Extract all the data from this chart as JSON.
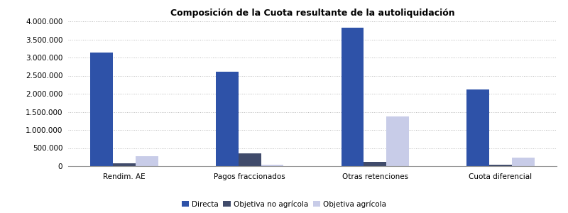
{
  "title": "Composición de la Cuota resultante de la autoliquidación",
  "categories": [
    "Rendim. AE",
    "Pagos fraccionados",
    "Otras retenciones",
    "Cuota diferencial"
  ],
  "series": [
    {
      "name": "Directa",
      "color": "#2E52A8",
      "values": [
        3130000,
        2600000,
        3820000,
        2110000
      ]
    },
    {
      "name": "Objetiva no agrícola",
      "color": "#404B6B",
      "values": [
        70000,
        350000,
        120000,
        30000
      ]
    },
    {
      "name": "Objetiva agrícola",
      "color": "#C8CCE8",
      "values": [
        280000,
        40000,
        1370000,
        240000
      ]
    }
  ],
  "ylim": [
    0,
    4000000
  ],
  "yticks": [
    0,
    500000,
    1000000,
    1500000,
    2000000,
    2500000,
    3000000,
    3500000,
    4000000
  ],
  "background_color": "#ffffff",
  "grid_color": "#bbbbbb",
  "bar_width": 0.18,
  "title_fontsize": 9,
  "tick_fontsize": 7.5,
  "xtick_fontsize": 7.5
}
